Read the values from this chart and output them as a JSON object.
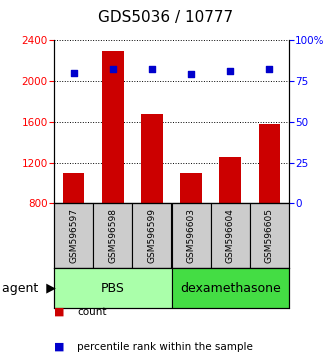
{
  "title": "GDS5036 / 10777",
  "samples": [
    "GSM596597",
    "GSM596598",
    "GSM596599",
    "GSM596603",
    "GSM596604",
    "GSM596605"
  ],
  "counts": [
    1100,
    2290,
    1680,
    1100,
    1250,
    1580
  ],
  "percentiles": [
    80,
    82,
    82,
    79,
    81,
    82
  ],
  "ylim_left": [
    800,
    2400
  ],
  "ylim_right": [
    0,
    100
  ],
  "yticks_left": [
    800,
    1200,
    1600,
    2000,
    2400
  ],
  "yticks_right": [
    0,
    25,
    50,
    75,
    100
  ],
  "bar_color": "#cc0000",
  "dot_color": "#0000cc",
  "pbs_label": "PBS",
  "dexa_label": "dexamethasone",
  "agent_label": "agent",
  "legend_count": "count",
  "legend_percentile": "percentile rank within the sample",
  "pbs_color": "#aaffaa",
  "dexa_color": "#44dd44",
  "sample_box_color": "#cccccc",
  "title_fontsize": 11,
  "tick_fontsize": 7.5,
  "bar_label_fontsize": 6.5,
  "agent_fontsize": 9,
  "legend_fontsize": 7.5
}
